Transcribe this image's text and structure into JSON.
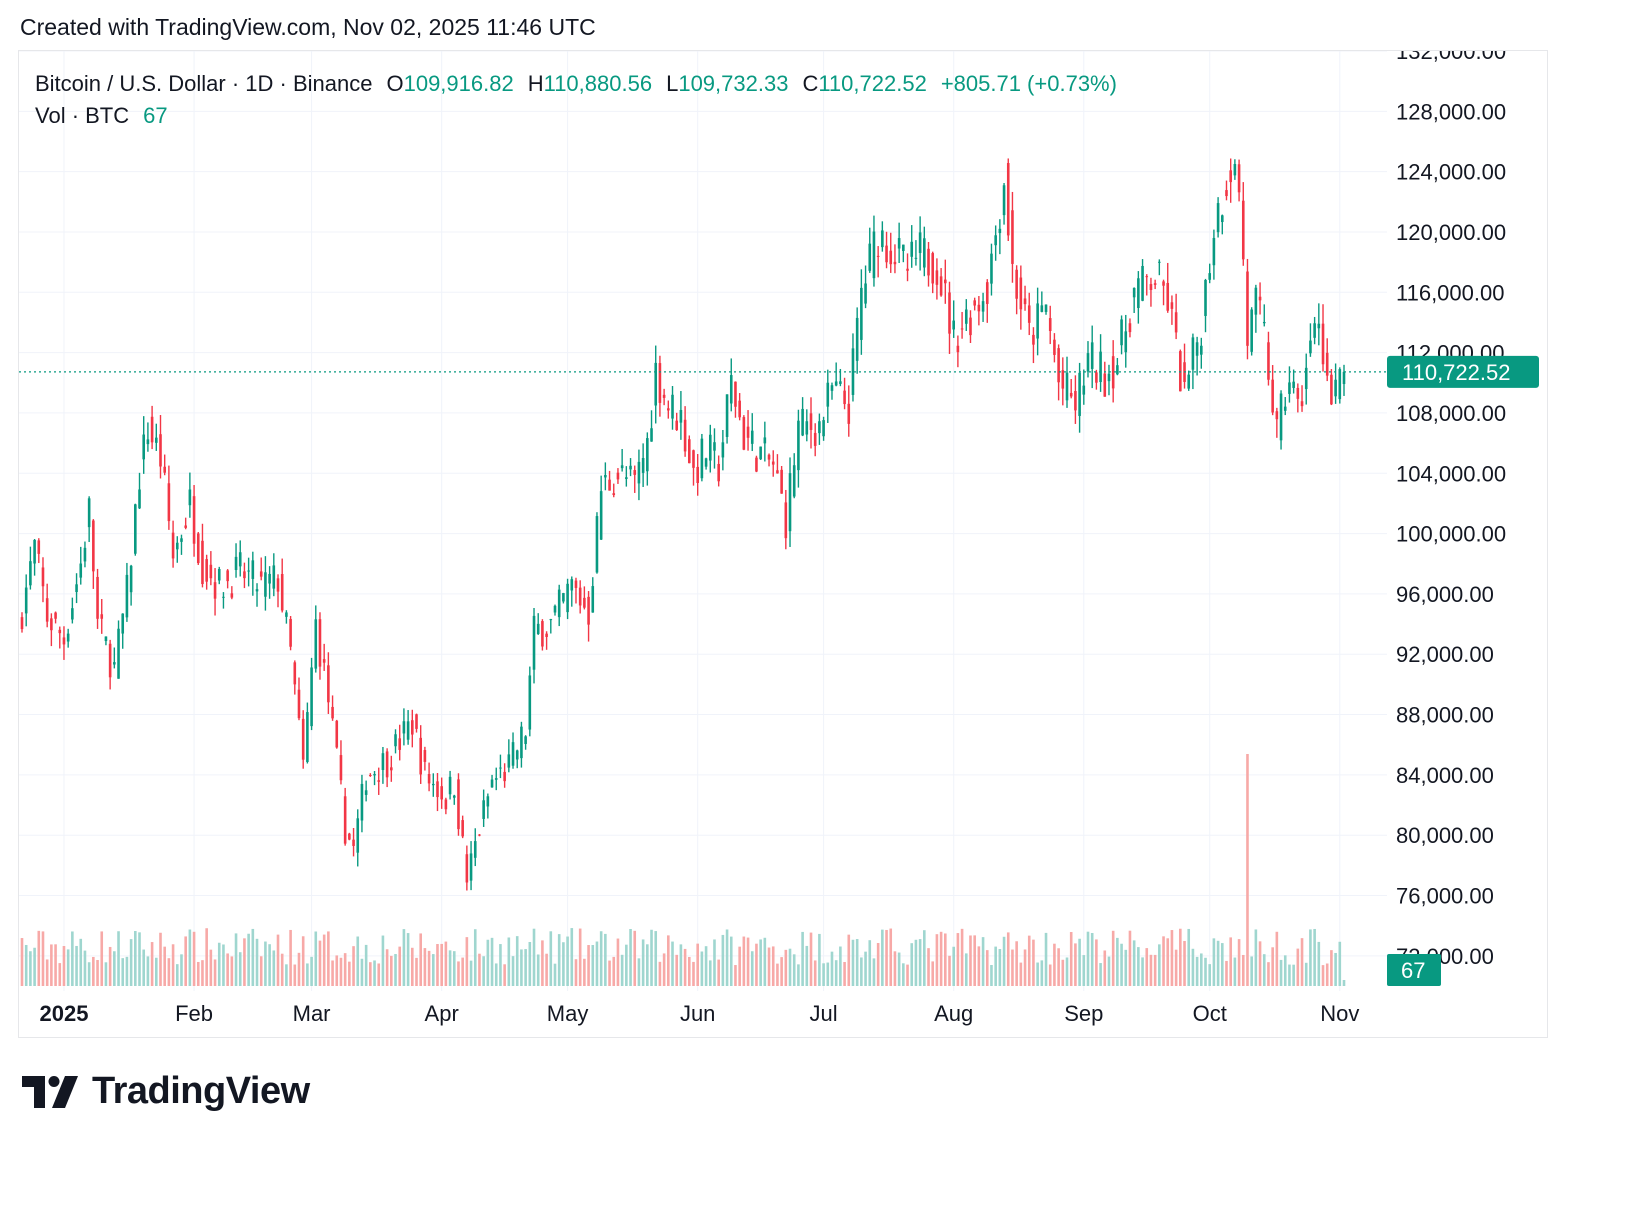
{
  "caption": "Created with TradingView.com, Nov 02, 2025 11:46 UTC",
  "legend": {
    "symbol": "Bitcoin / U.S. Dollar · 1D · Binance",
    "o_label": "O",
    "o_value": "109,916.82",
    "h_label": "H",
    "h_value": "110,880.56",
    "l_label": "L",
    "l_value": "109,732.33",
    "c_label": "C",
    "c_value": "110,722.52",
    "change": "+805.71 (+0.73%)",
    "vol_label": "Vol · BTC",
    "vol_value": "67"
  },
  "brand": {
    "name": "TradingView",
    "logo_icon": "tradingview-logo-icon"
  },
  "colors": {
    "up": "#089981",
    "down": "#f23645",
    "up_vol": "#9fd6cf",
    "down_vol": "#f7a9a7",
    "grid": "#f0f3fa",
    "text": "#131722"
  },
  "chart_data": {
    "type": "candlestick",
    "title": "Bitcoin / U.S. Dollar · 1D · Binance",
    "y_axis": {
      "min": 70000,
      "max": 132000,
      "position": "right",
      "ticks": [
        72000,
        76000,
        80000,
        84000,
        88000,
        92000,
        96000,
        100000,
        104000,
        108000,
        112000,
        116000,
        120000,
        124000,
        128000,
        132000
      ],
      "tick_labels": [
        "72,000.00",
        "76,000.00",
        "80,000.00",
        "84,000.00",
        "88,000.00",
        "92,000.00",
        "96,000.00",
        "100,000.00",
        "104,000.00",
        "108,000.00",
        "112,000.00",
        "116,000.00",
        "120,000.00",
        "124,000.00",
        "128,000.00",
        "132,000.00"
      ]
    },
    "x_axis": {
      "start": "2024-12-22",
      "end": "2025-11-02",
      "ticks": [
        {
          "date": "2025-01-01",
          "label": "2025",
          "bold": true
        },
        {
          "date": "2025-02-01",
          "label": "Feb"
        },
        {
          "date": "2025-03-01",
          "label": "Mar"
        },
        {
          "date": "2025-04-01",
          "label": "Apr"
        },
        {
          "date": "2025-05-01",
          "label": "May"
        },
        {
          "date": "2025-06-01",
          "label": "Jun"
        },
        {
          "date": "2025-07-01",
          "label": "Jul"
        },
        {
          "date": "2025-08-01",
          "label": "Aug"
        },
        {
          "date": "2025-09-01",
          "label": "Sep"
        },
        {
          "date": "2025-10-01",
          "label": "Oct"
        },
        {
          "date": "2025-11-01",
          "label": "Nov"
        }
      ]
    },
    "last_price": 110722.52,
    "last_price_label": "110,722.52",
    "last_volume_label": "67",
    "grid": true,
    "close_series": [
      [
        "2024-12-22",
        95000
      ],
      [
        "2024-12-25",
        99000
      ],
      [
        "2024-12-28",
        94500
      ],
      [
        "2025-01-01",
        93000
      ],
      [
        "2025-01-05",
        98000
      ],
      [
        "2025-01-07",
        101500
      ],
      [
        "2025-01-09",
        94000
      ],
      [
        "2025-01-13",
        91000
      ],
      [
        "2025-01-16",
        96000
      ],
      [
        "2025-01-19",
        104000
      ],
      [
        "2025-01-21",
        107000
      ],
      [
        "2025-01-24",
        105000
      ],
      [
        "2025-01-27",
        98500
      ],
      [
        "2025-01-31",
        102000
      ],
      [
        "2025-02-03",
        98000
      ],
      [
        "2025-02-07",
        96500
      ],
      [
        "2025-02-12",
        97500
      ],
      [
        "2025-02-17",
        96500
      ],
      [
        "2025-02-21",
        97000
      ],
      [
        "2025-02-24",
        92000
      ],
      [
        "2025-02-27",
        84500
      ],
      [
        "2025-03-02",
        94000
      ],
      [
        "2025-03-05",
        89000
      ],
      [
        "2025-03-09",
        80500
      ],
      [
        "2025-03-11",
        79000
      ],
      [
        "2025-03-14",
        84000
      ],
      [
        "2025-03-19",
        85000
      ],
      [
        "2025-03-25",
        87500
      ],
      [
        "2025-03-28",
        84000
      ],
      [
        "2025-04-02",
        82500
      ],
      [
        "2025-04-04",
        83500
      ],
      [
        "2025-04-07",
        77000
      ],
      [
        "2025-04-10",
        80500
      ],
      [
        "2025-04-13",
        83500
      ],
      [
        "2025-04-17",
        84500
      ],
      [
        "2025-04-21",
        87000
      ],
      [
        "2025-04-23",
        93500
      ],
      [
        "2025-04-27",
        94000
      ],
      [
        "2025-05-02",
        96500
      ],
      [
        "2025-05-06",
        94800
      ],
      [
        "2025-05-09",
        103000
      ],
      [
        "2025-05-13",
        104000
      ],
      [
        "2025-05-17",
        103200
      ],
      [
        "2025-05-20",
        106000
      ],
      [
        "2025-05-22",
        110800
      ],
      [
        "2025-05-25",
        108500
      ],
      [
        "2025-05-28",
        107700
      ],
      [
        "2025-05-31",
        104000
      ],
      [
        "2025-06-03",
        105500
      ],
      [
        "2025-06-06",
        104500
      ],
      [
        "2025-06-09",
        110000
      ],
      [
        "2025-06-12",
        106500
      ],
      [
        "2025-06-15",
        105500
      ],
      [
        "2025-06-19",
        104500
      ],
      [
        "2025-06-22",
        101000
      ],
      [
        "2025-06-25",
        107000
      ],
      [
        "2025-06-30",
        107200
      ],
      [
        "2025-07-03",
        109500
      ],
      [
        "2025-07-07",
        108500
      ],
      [
        "2025-07-10",
        116000
      ],
      [
        "2025-07-14",
        120000
      ],
      [
        "2025-07-17",
        119000
      ],
      [
        "2025-07-21",
        117500
      ],
      [
        "2025-07-24",
        118500
      ],
      [
        "2025-07-28",
        118000
      ],
      [
        "2025-08-01",
        113000
      ],
      [
        "2025-08-03",
        114000
      ],
      [
        "2025-08-06",
        115000
      ],
      [
        "2025-08-09",
        116500
      ],
      [
        "2025-08-13",
        123500
      ],
      [
        "2025-08-15",
        117500
      ],
      [
        "2025-08-19",
        113000
      ],
      [
        "2025-08-23",
        115000
      ],
      [
        "2025-08-26",
        110000
      ],
      [
        "2025-08-30",
        108500
      ],
      [
        "2025-09-02",
        111500
      ],
      [
        "2025-09-06",
        110500
      ],
      [
        "2025-09-09",
        111500
      ],
      [
        "2025-09-13",
        116000
      ],
      [
        "2025-09-18",
        117000
      ],
      [
        "2025-09-21",
        115500
      ],
      [
        "2025-09-25",
        109000
      ],
      [
        "2025-09-29",
        114000
      ],
      [
        "2025-10-02",
        120500
      ],
      [
        "2025-10-06",
        124500
      ],
      [
        "2025-10-08",
        123000
      ],
      [
        "2025-10-10",
        113000
      ],
      [
        "2025-10-12",
        115000
      ],
      [
        "2025-10-14",
        113000
      ],
      [
        "2025-10-17",
        106500
      ],
      [
        "2025-10-20",
        110500
      ],
      [
        "2025-10-22",
        108000
      ],
      [
        "2025-10-24",
        111000
      ],
      [
        "2025-10-27",
        114500
      ],
      [
        "2025-10-30",
        108500
      ],
      [
        "2025-11-01",
        109900
      ],
      [
        "2025-11-02",
        110722.52
      ]
    ],
    "volume_spike": {
      "date": "2025-10-10",
      "direction": "down"
    }
  }
}
